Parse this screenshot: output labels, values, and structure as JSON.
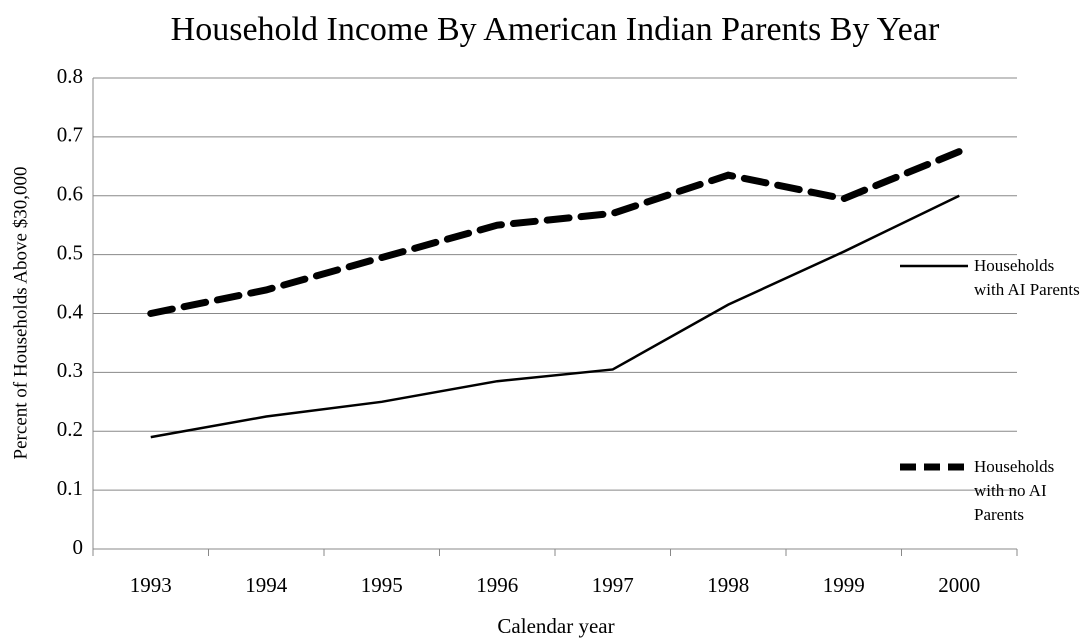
{
  "chart_data": {
    "type": "line",
    "title": "Household Income By American Indian Parents By Year",
    "x_label": "Calendar year",
    "y_label": "Percent of Households Above $30,000",
    "categories": [
      "1993",
      "1994",
      "1995",
      "1996",
      "1997",
      "1998",
      "1999",
      "2000"
    ],
    "series": [
      {
        "name": "Households with AI Parents",
        "color": "#000000",
        "dash": false,
        "values": [
          0.19,
          0.225,
          0.25,
          0.285,
          0.305,
          0.415,
          0.505,
          0.6
        ]
      },
      {
        "name": "Households with no AI Parents",
        "color": "#000000",
        "dash": true,
        "values": [
          0.4,
          0.44,
          0.495,
          0.55,
          0.57,
          0.635,
          0.595,
          0.675
        ]
      }
    ],
    "ylim": [
      0,
      0.8
    ],
    "yticks": [
      0,
      0.1,
      0.2,
      0.3,
      0.4,
      0.5,
      0.6,
      0.7,
      0.8
    ],
    "grid": true,
    "legend": "right"
  }
}
